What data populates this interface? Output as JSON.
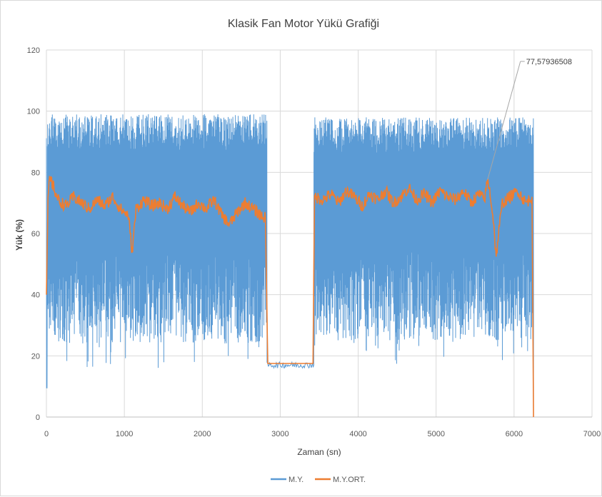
{
  "chart_data": {
    "type": "line",
    "title": "Klasik Fan Motor Yükü Grafiği",
    "xlabel": "Zaman (sn)",
    "ylabel": "Yük (%)",
    "xlim": [
      0,
      7000
    ],
    "ylim": [
      0,
      120
    ],
    "x_ticks": [
      "0",
      "1000",
      "2000",
      "3000",
      "4000",
      "5000",
      "6000",
      "7000"
    ],
    "y_ticks": [
      "0",
      "20",
      "40",
      "60",
      "80",
      "100",
      "120"
    ],
    "grid": true,
    "legend_position": "bottom",
    "series": [
      {
        "name": "M.Y.",
        "color": "#5b9bd5",
        "segments": [
          {
            "x_start": 0,
            "x_end": 2830,
            "min": 16,
            "max": 99,
            "note_low": 9.5
          },
          {
            "x_start": 2830,
            "x_end": 3430,
            "min": 16,
            "max": 18
          },
          {
            "x_start": 3430,
            "x_end": 6250,
            "min": 17,
            "max": 98
          }
        ]
      },
      {
        "name": "M.Y.ORT.",
        "color": "#ed7d31",
        "points": [
          [
            0,
            40
          ],
          [
            20,
            70
          ],
          [
            40,
            78
          ],
          [
            80,
            76
          ],
          [
            150,
            71
          ],
          [
            250,
            69
          ],
          [
            350,
            72
          ],
          [
            450,
            70
          ],
          [
            550,
            68
          ],
          [
            650,
            71
          ],
          [
            750,
            69
          ],
          [
            850,
            72
          ],
          [
            950,
            68
          ],
          [
            1050,
            66
          ],
          [
            1100,
            54
          ],
          [
            1150,
            68
          ],
          [
            1250,
            71
          ],
          [
            1350,
            69
          ],
          [
            1450,
            70
          ],
          [
            1550,
            68
          ],
          [
            1650,
            72
          ],
          [
            1750,
            69
          ],
          [
            1850,
            67
          ],
          [
            1950,
            70
          ],
          [
            2050,
            68
          ],
          [
            2150,
            71
          ],
          [
            2250,
            66
          ],
          [
            2350,
            63
          ],
          [
            2450,
            67
          ],
          [
            2550,
            70
          ],
          [
            2650,
            68
          ],
          [
            2750,
            66
          ],
          [
            2810,
            65
          ],
          [
            2840,
            17.5
          ],
          [
            2900,
            17.5
          ],
          [
            3000,
            17.5
          ],
          [
            3100,
            17.5
          ],
          [
            3200,
            17.5
          ],
          [
            3300,
            17.5
          ],
          [
            3420,
            17.5
          ],
          [
            3440,
            72
          ],
          [
            3550,
            71
          ],
          [
            3650,
            73
          ],
          [
            3750,
            70
          ],
          [
            3850,
            74
          ],
          [
            3950,
            72
          ],
          [
            4050,
            69
          ],
          [
            4150,
            73
          ],
          [
            4250,
            71
          ],
          [
            4350,
            74
          ],
          [
            4450,
            70
          ],
          [
            4550,
            72
          ],
          [
            4650,
            75
          ],
          [
            4750,
            71
          ],
          [
            4850,
            73
          ],
          [
            4950,
            70
          ],
          [
            5050,
            74
          ],
          [
            5150,
            72
          ],
          [
            5250,
            71
          ],
          [
            5350,
            74
          ],
          [
            5450,
            70
          ],
          [
            5550,
            73
          ],
          [
            5620,
            71
          ],
          [
            5660,
            77.58
          ],
          [
            5700,
            72
          ],
          [
            5740,
            63
          ],
          [
            5770,
            52
          ],
          [
            5800,
            60
          ],
          [
            5850,
            70
          ],
          [
            5950,
            72
          ],
          [
            6050,
            74
          ],
          [
            6150,
            70
          ],
          [
            6230,
            72
          ],
          [
            6250,
            0
          ]
        ]
      }
    ],
    "annotations": [
      {
        "text": "77,57936508",
        "x": 5660,
        "y": 77.58
      }
    ]
  }
}
